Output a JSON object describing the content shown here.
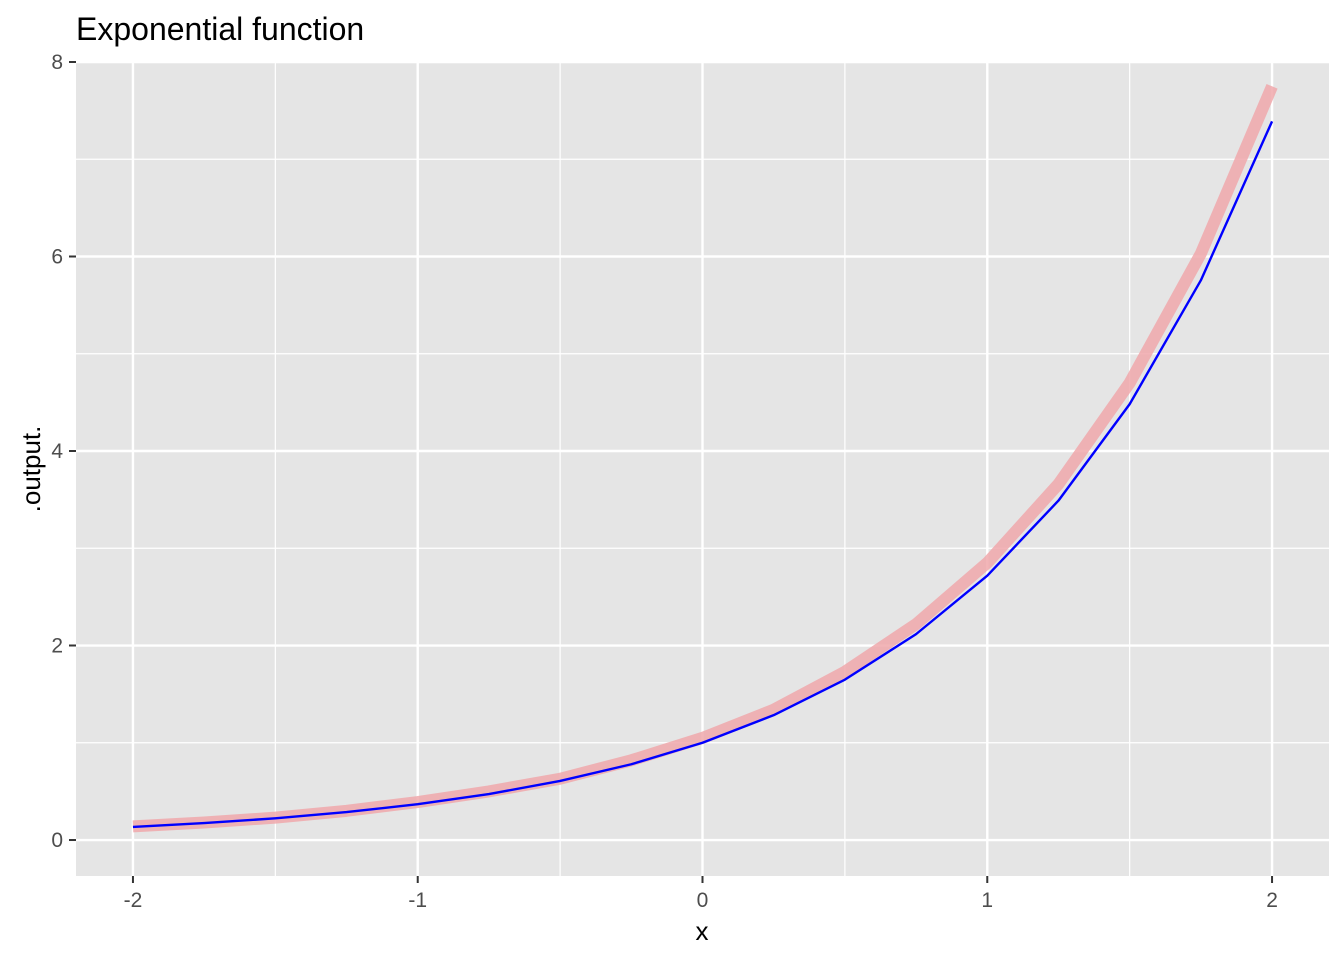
{
  "chart_data": {
    "type": "line",
    "title": "Exponential function",
    "xlabel": "x",
    "ylabel": ".output.",
    "xlim": [
      -2.2,
      2.2
    ],
    "ylim": [
      -0.37,
      8.0
    ],
    "x_ticks": [
      -2,
      -1,
      0,
      1,
      2
    ],
    "x_tick_labels": [
      "-2",
      "-1",
      "0",
      "1",
      "2"
    ],
    "y_ticks": [
      0,
      2,
      4,
      6,
      8
    ],
    "y_tick_labels": [
      "0",
      "2",
      "4",
      "6",
      "8"
    ],
    "x_minor_grid": [
      -1.5,
      -0.5,
      0.5,
      1.5
    ],
    "y_minor_grid": [
      1,
      3,
      5,
      7
    ],
    "grid": true,
    "legend": "none",
    "panel_background": "#e5e5e5",
    "grid_color": "#ffffff",
    "series": [
      {
        "color": "#f0a8ac",
        "style": "thick translucent",
        "x": [
          -2.0,
          -1.75,
          -1.5,
          -1.25,
          -1.0,
          -0.75,
          -0.5,
          -0.25,
          0.0,
          0.25,
          0.5,
          0.75,
          1.0,
          1.25,
          1.5,
          1.75,
          2.0
        ],
        "y": [
          0.14,
          0.18,
          0.23,
          0.3,
          0.39,
          0.5,
          0.63,
          0.82,
          1.05,
          1.34,
          1.73,
          2.22,
          2.85,
          3.66,
          4.7,
          6.03,
          7.75
        ]
      },
      {
        "color": "#0000ff",
        "style": "thin solid",
        "x": [
          -2.0,
          -1.75,
          -1.5,
          -1.25,
          -1.0,
          -0.75,
          -0.5,
          -0.25,
          0.0,
          0.25,
          0.5,
          0.75,
          1.0,
          1.25,
          1.5,
          1.75,
          2.0
        ],
        "y": [
          0.135,
          0.174,
          0.223,
          0.287,
          0.368,
          0.472,
          0.607,
          0.779,
          1.0,
          1.284,
          1.649,
          2.117,
          2.718,
          3.49,
          4.482,
          5.755,
          7.389
        ]
      }
    ]
  }
}
